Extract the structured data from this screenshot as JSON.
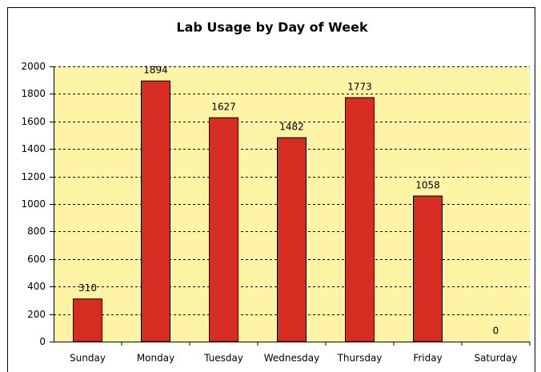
{
  "chart_data": {
    "type": "bar",
    "title": "Lab Usage by Day of Week",
    "categories": [
      "Sunday",
      "Monday",
      "Tuesday",
      "Wednesday",
      "Thursday",
      "Friday",
      "Saturday"
    ],
    "values": [
      310,
      1894,
      1627,
      1482,
      1773,
      1058,
      0
    ],
    "color": "#d62c21",
    "ylim": [
      0,
      2000
    ],
    "yticks": [
      0,
      200,
      400,
      600,
      800,
      1000,
      1200,
      1400,
      1600,
      1800,
      2000
    ],
    "grid": true
  }
}
